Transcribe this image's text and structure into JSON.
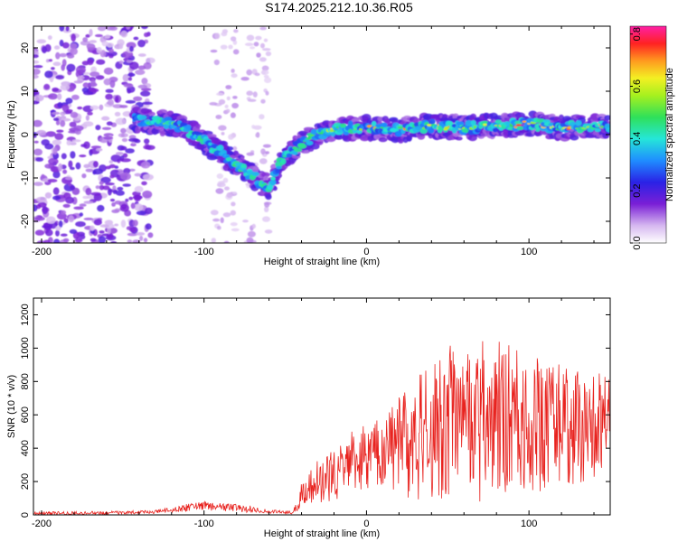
{
  "title": "S174.2025.212.10.36.R05",
  "colors": {
    "snr_line": "#e8231f",
    "axis": "#000000",
    "background": "#ffffff"
  },
  "chart_data": [
    {
      "type": "heatmap",
      "xlabel": "Height of straight line (km)",
      "ylabel": "Frequency (Hz)",
      "xlim": [
        -205,
        150
      ],
      "ylim": [
        -25,
        25
      ],
      "x_ticks": [
        -200,
        -100,
        0,
        100
      ],
      "y_ticks": [
        -20,
        -10,
        0,
        10,
        20
      ],
      "colorbar": {
        "label": "Normalized spectral amplitude",
        "range": [
          0.0,
          0.83
        ],
        "ticks": [
          0.0,
          0.2,
          0.4,
          0.6,
          0.8
        ]
      },
      "ridge": {
        "name": "main echo track",
        "x": [
          -143,
          -130,
          -120,
          -110,
          -100,
          -90,
          -80,
          -70,
          -60,
          -55,
          -50,
          -40,
          -30,
          -20,
          -10,
          0,
          20,
          40,
          60,
          80,
          100,
          120,
          140,
          150
        ],
        "y": [
          3.5,
          3,
          2.5,
          1,
          -1.5,
          -4,
          -7,
          -9.5,
          -12.5,
          -8,
          -5,
          -2,
          0,
          1,
          1.5,
          1.5,
          1,
          2,
          1.5,
          2,
          2.5,
          1.5,
          2,
          2
        ],
        "peak": [
          0.4,
          0.5,
          0.55,
          0.5,
          0.5,
          0.45,
          0.5,
          0.55,
          0.45,
          0.4,
          0.5,
          0.55,
          0.6,
          0.7,
          0.75,
          0.7,
          0.7,
          0.75,
          0.7,
          0.75,
          0.8,
          0.75,
          0.8,
          0.8
        ]
      },
      "secondary_track": {
        "name": "secondary descending track",
        "x": [
          -90,
          -80,
          -70,
          -60,
          -55
        ],
        "y": [
          -2,
          -5,
          -8,
          -11,
          -12
        ]
      },
      "noise_region": {
        "x_range": [
          -205,
          -133
        ],
        "y_range": [
          -25,
          25
        ],
        "level": [
          0.05,
          0.2
        ]
      },
      "sparse_bands": [
        {
          "x_range": [
            -95,
            -80
          ],
          "y_range": [
            -25,
            25
          ]
        },
        {
          "x_range": [
            -75,
            -60
          ],
          "y_range": [
            -25,
            25
          ]
        }
      ]
    },
    {
      "type": "line",
      "xlabel": "Height of straight line (km)",
      "ylabel": "SNR (10 * v/v)",
      "xlim": [
        -205,
        150
      ],
      "ylim": [
        0,
        1300
      ],
      "x_ticks": [
        -200,
        -100,
        0,
        100
      ],
      "y_ticks": [
        0,
        200,
        400,
        600,
        800,
        1000,
        1200
      ],
      "series": [
        {
          "color": "#e8231f",
          "envelope": {
            "x": [
              -205,
              -160,
              -130,
              -110,
              -100,
              -90,
              -75,
              -60,
              -45,
              -40,
              -30,
              -20,
              -10,
              0,
              10,
              20,
              30,
              40,
              50,
              60,
              70,
              80,
              90,
              100,
              110,
              120,
              130,
              140,
              150
            ],
            "mean": [
              10,
              12,
              18,
              45,
              55,
              45,
              40,
              20,
              15,
              110,
              190,
              240,
              320,
              350,
              380,
              440,
              470,
              500,
              560,
              580,
              560,
              580,
              590,
              560,
              520,
              540,
              520,
              560,
              560
            ],
            "spread": [
              10,
              10,
              10,
              25,
              25,
              25,
              25,
              10,
              10,
              80,
              140,
              160,
              190,
              200,
              210,
              320,
              380,
              420,
              460,
              470,
              480,
              470,
              450,
              420,
              380,
              380,
              360,
              340,
              330
            ]
          }
        }
      ]
    }
  ]
}
